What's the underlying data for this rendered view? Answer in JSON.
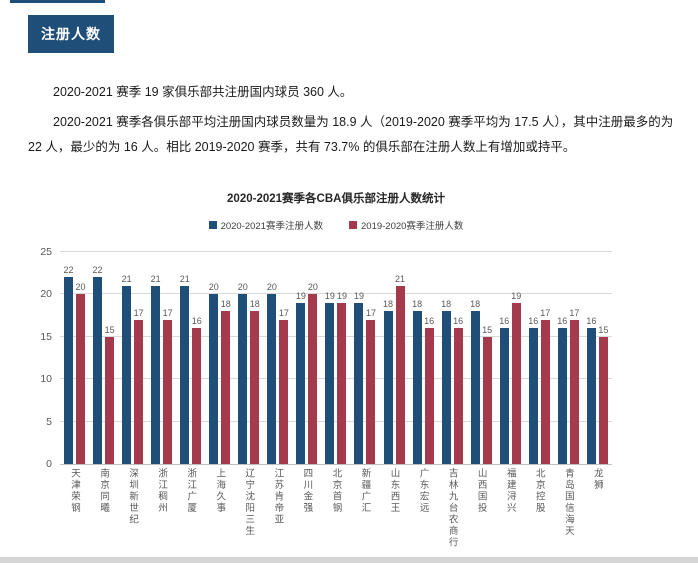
{
  "page": {
    "badge_label": "注册人数",
    "paragraphs": {
      "p1": "2020-2021 赛季 19 家俱乐部共注册国内球员 360 人。",
      "p2": "2020-2021 赛季各俱乐部平均注册国内球员数量为 18.9 人（2019-2020 赛季平均为 17.5 人），其中注册最多的为 22 人，最少的为 16 人。相比 2019-2020 赛季，共有 73.7% 的俱乐部在注册人数上有增加或持平。"
    }
  },
  "chart_data": {
    "type": "bar",
    "title": "2020-2021赛季各CBA俱乐部注册人数统计",
    "categories": [
      "天津荣钢",
      "南京同曦",
      "深圳新世纪",
      "浙江稠州",
      "浙江广厦",
      "上海久事",
      "辽宁沈阳三生",
      "江苏肯帝亚",
      "四川金强",
      "北京首钢",
      "新疆广汇",
      "山东西王",
      "广东宏远",
      "吉林九台农商行",
      "山西国投",
      "福建浔兴",
      "北京控股",
      "青岛国信海天",
      "龙狮"
    ],
    "series": [
      {
        "name": "2020-2021赛季注册人数",
        "color": "#1F4E79",
        "values": [
          22,
          22,
          21,
          21,
          21,
          20,
          20,
          20,
          19,
          19,
          19,
          18,
          18,
          18,
          18,
          16,
          16,
          16,
          16
        ]
      },
      {
        "name": "2019-2020赛季注册人数",
        "color": "#A63A4D",
        "values": [
          20,
          15,
          17,
          17,
          16,
          18,
          18,
          17,
          20,
          19,
          17,
          21,
          16,
          16,
          15,
          19,
          17,
          17,
          15
        ]
      }
    ],
    "xlabel": "",
    "ylabel": "",
    "ylim": [
      0,
      25
    ],
    "yticks": [
      0,
      5,
      10,
      15,
      20,
      25
    ],
    "grid": true,
    "legend_position": "top",
    "value_labels": true
  },
  "colors": {
    "accent_blue": "#1F4E79",
    "accent_red": "#A63A4D",
    "grid_gray": "#D9D9D9",
    "label_gray": "#595959"
  }
}
